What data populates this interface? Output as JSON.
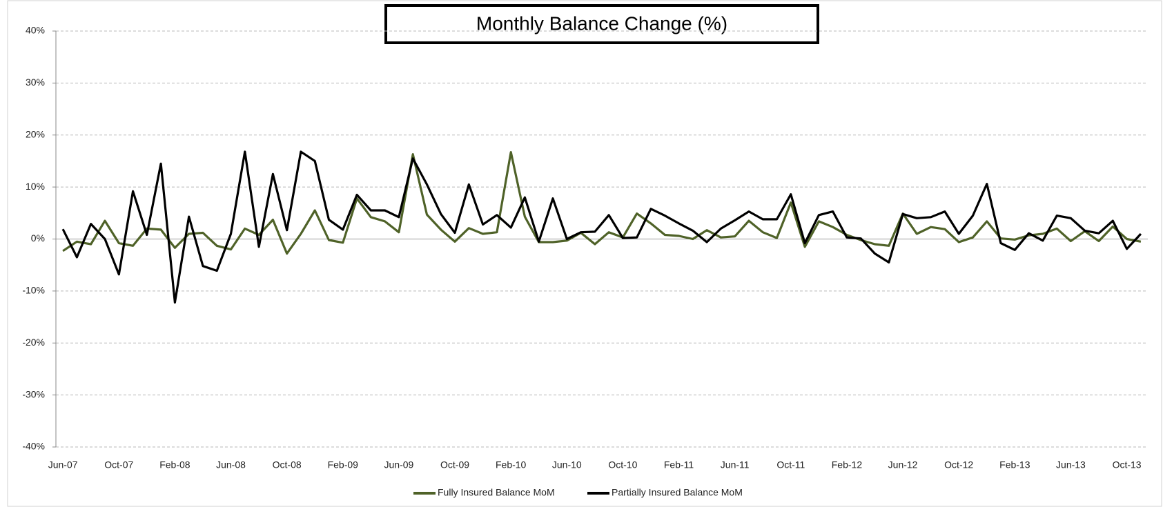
{
  "chart_data": {
    "type": "line",
    "title": "Monthly Balance Change (%)",
    "categories": [
      "Jun-07",
      null,
      null,
      null,
      "Oct-07",
      null,
      null,
      null,
      "Feb-08",
      null,
      null,
      null,
      "Jun-08",
      null,
      null,
      null,
      "Oct-08",
      null,
      null,
      null,
      "Feb-09",
      null,
      null,
      null,
      "Jun-09",
      null,
      null,
      null,
      "Oct-09",
      null,
      null,
      null,
      "Feb-10",
      null,
      null,
      null,
      "Jun-10",
      null,
      null,
      null,
      "Oct-10",
      null,
      null,
      null,
      "Feb-11",
      null,
      null,
      null,
      "Jun-11",
      null,
      null,
      null,
      "Oct-11",
      null,
      null,
      null,
      "Feb-12",
      null,
      null,
      null,
      "Jun-12",
      null,
      null,
      null,
      "Oct-12",
      null,
      null,
      null,
      "Feb-13",
      null,
      null,
      null,
      "Jun-13",
      null,
      null,
      null,
      "Oct-13",
      null
    ],
    "series": [
      {
        "name": "Fully Insured Balance MoM",
        "color": "#4f6228",
        "values": [
          -2.3,
          -0.5,
          -1,
          3.5,
          -0.8,
          -1.3,
          2,
          1.8,
          -1.7,
          1,
          1.2,
          -1.3,
          -2,
          2,
          0.8,
          3.7,
          -2.8,
          1,
          5.5,
          -0.2,
          -0.7,
          7.8,
          4.2,
          3.4,
          1.3,
          16.3,
          4.7,
          1.8,
          -0.5,
          2.1,
          1,
          1.3,
          16.7,
          4.3,
          -0.6,
          -0.6,
          -0.3,
          1.2,
          -1,
          1.3,
          0.3,
          4.9,
          3,
          0.8,
          0.6,
          0,
          1.7,
          0.3,
          0.5,
          3.5,
          1.3,
          0.2,
          7,
          -1.5,
          3.4,
          2.3,
          0.8,
          -0.2,
          -1,
          -1.3,
          4.9,
          1,
          2.3,
          1.9,
          -0.6,
          0.3,
          3.4,
          0.1,
          -0.1,
          0.7,
          1,
          2,
          -0.4,
          1.5,
          -0.4,
          2.4,
          0,
          -0.5
        ]
      },
      {
        "name": "Partially Insured Balance MoM",
        "color": "#000000",
        "values": [
          1.9,
          -3.5,
          2.9,
          0,
          -6.8,
          9.2,
          0.8,
          14.5,
          -12.2,
          4.3,
          -5.2,
          -6.1,
          1,
          16.8,
          -1.5,
          12.5,
          1.7,
          16.8,
          15,
          3.7,
          1.8,
          8.5,
          5.5,
          5.5,
          4.2,
          15.5,
          10.5,
          4.8,
          1.2,
          10.5,
          2.8,
          4.6,
          2.2,
          8,
          -0.5,
          7.8,
          0,
          1.3,
          1.4,
          4.6,
          0.2,
          0.3,
          5.8,
          4.5,
          3,
          1.6,
          -0.6,
          2,
          3.6,
          5.3,
          3.8,
          3.8,
          8.6,
          -0.8,
          4.6,
          5.3,
          0.3,
          0.1,
          -2.8,
          -4.5,
          4.8,
          4,
          4.2,
          5.3,
          1,
          4.5,
          10.6,
          -0.8,
          -2.1,
          1.1,
          -0.3,
          4.5,
          4,
          1.6,
          1.1,
          3.5,
          -1.9,
          1
        ]
      }
    ],
    "ylim": [
      -40,
      40
    ],
    "yticks": [
      {
        "value": -40,
        "label": "-40%"
      },
      {
        "value": -30,
        "label": "-30%"
      },
      {
        "value": -20,
        "label": "-20%"
      },
      {
        "value": -10,
        "label": "-10%"
      },
      {
        "value": 0,
        "label": "0%"
      },
      {
        "value": 10,
        "label": "10%"
      },
      {
        "value": 20,
        "label": "20%"
      },
      {
        "value": 30,
        "label": "30%"
      },
      {
        "value": 40,
        "label": "40%"
      }
    ],
    "grid": true,
    "legend": "bottom"
  }
}
